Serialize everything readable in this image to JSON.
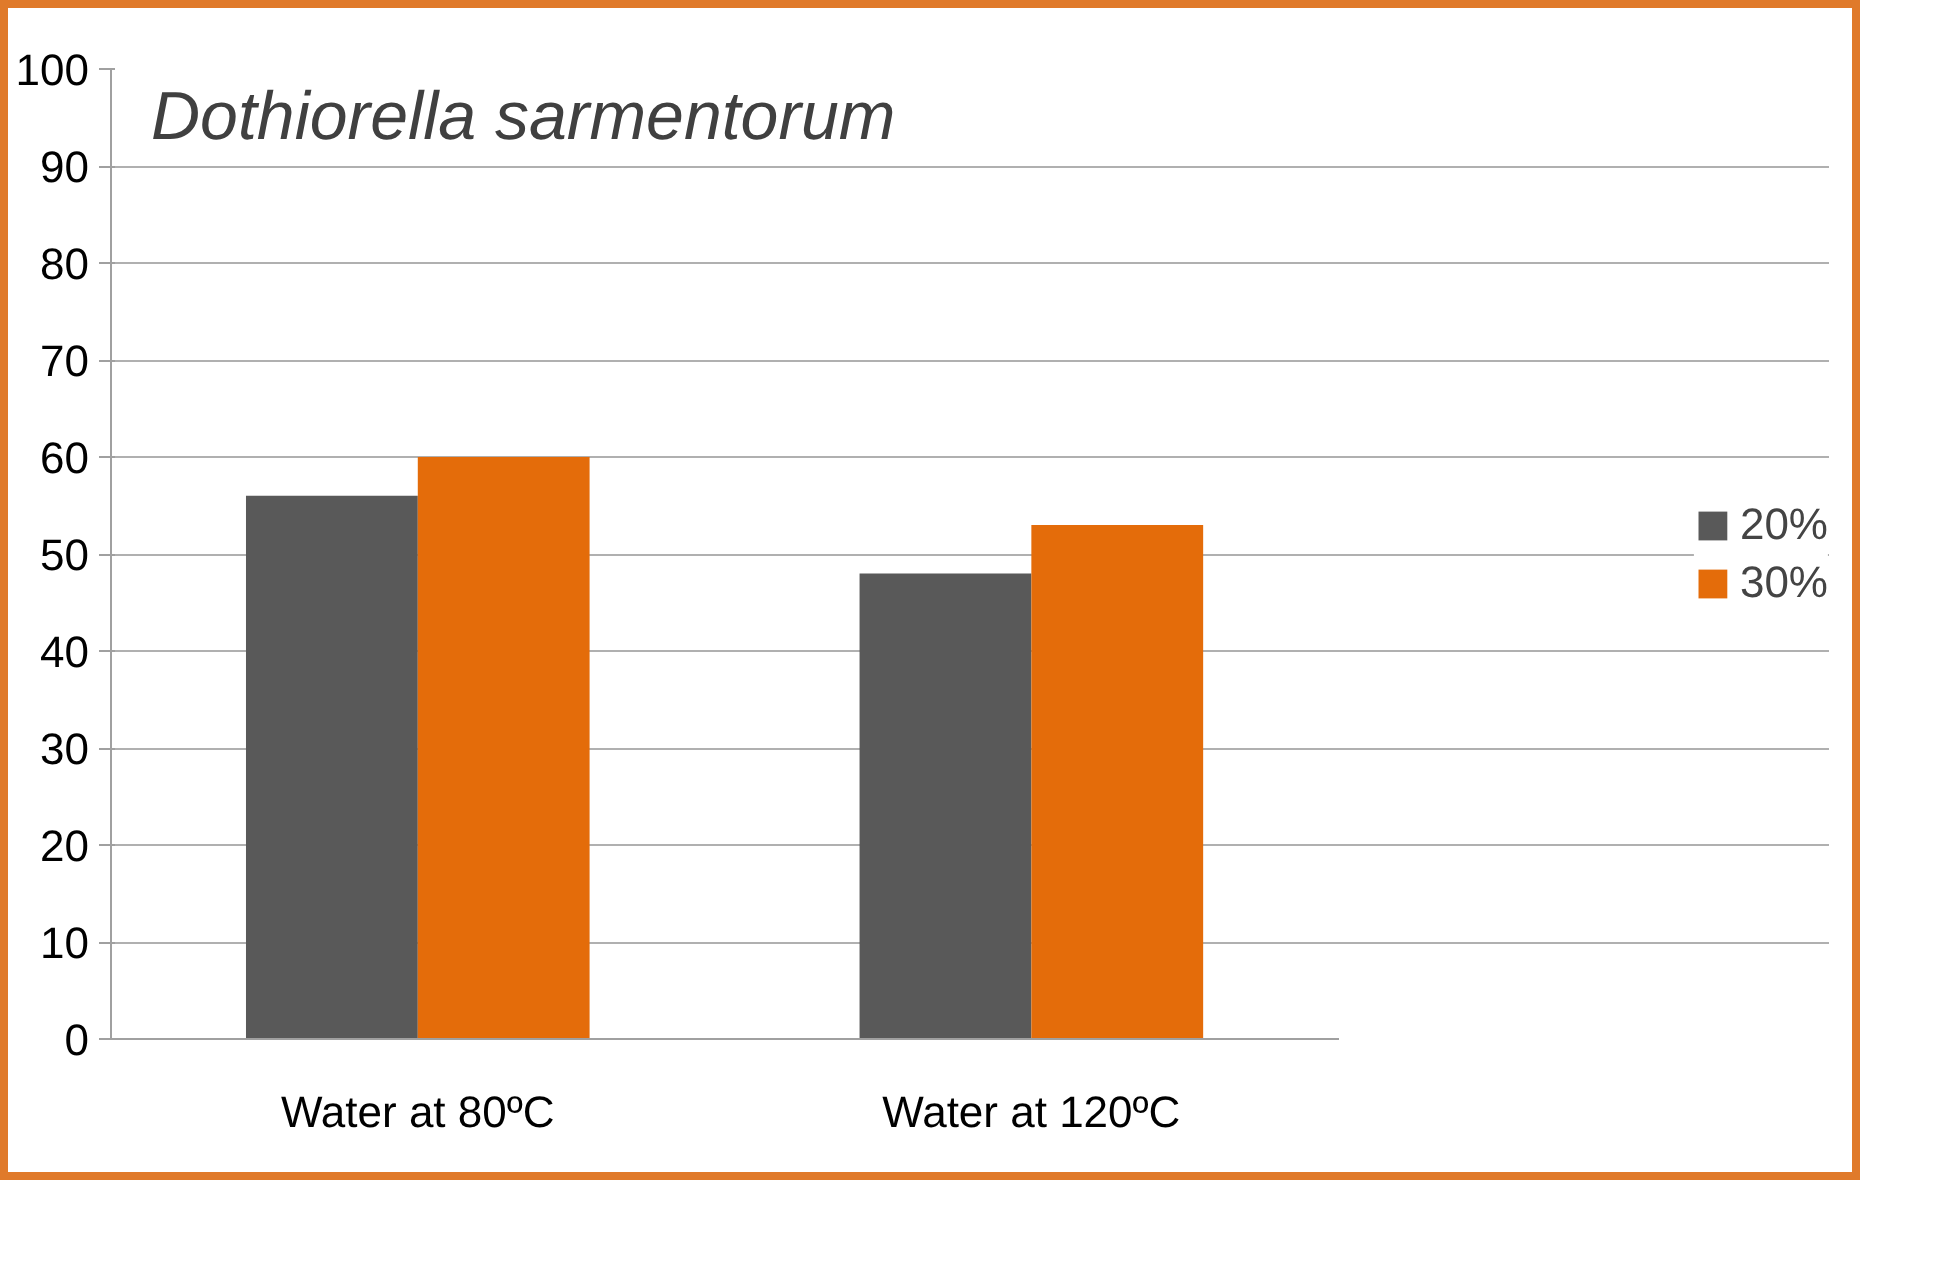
{
  "chart_data": {
    "type": "bar",
    "title": "Dothiorella sarmentorum",
    "categories": [
      "Water at 80ºC",
      "Water at 120ºC"
    ],
    "series": [
      {
        "name": "20%",
        "color": "#595959",
        "values": [
          56,
          48
        ]
      },
      {
        "name": "30%",
        "color": "#e46c0a",
        "values": [
          60,
          53
        ]
      }
    ],
    "ylim": [
      0,
      100
    ],
    "yticks": [
      0,
      10,
      20,
      30,
      40,
      50,
      60,
      70,
      80,
      90,
      100
    ],
    "grid": "y",
    "legend": "right"
  }
}
